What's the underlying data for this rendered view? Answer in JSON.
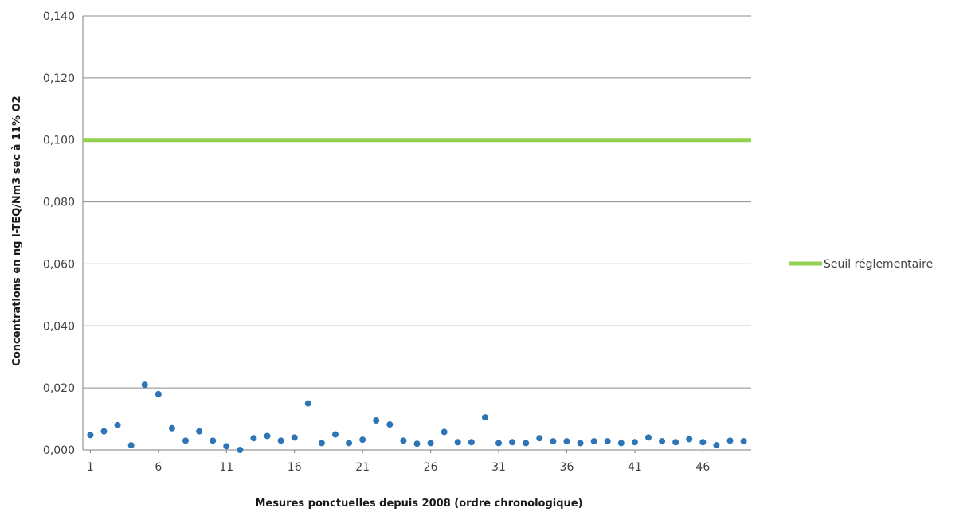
{
  "chart_data": {
    "type": "scatter",
    "title": "",
    "xlabel": "Mesures ponctuelles depuis 2008 (ordre chronologique)",
    "ylabel": "Concentrations en ng I-TEQ/Nm3 sec à 11% O2",
    "ylim": [
      0,
      0.14
    ],
    "xlim": [
      1,
      49
    ],
    "grid": true,
    "legend_position": "right",
    "y_ticks": [
      "0,000",
      "0,020",
      "0,040",
      "0,060",
      "0,080",
      "0,100",
      "0,120",
      "0,140"
    ],
    "y_tick_values": [
      0,
      0.02,
      0.04,
      0.06,
      0.08,
      0.1,
      0.12,
      0.14
    ],
    "x_ticks": [
      "1",
      "6",
      "11",
      "16",
      "21",
      "26",
      "31",
      "36",
      "41",
      "46"
    ],
    "x_tick_values": [
      1,
      6,
      11,
      16,
      21,
      26,
      31,
      36,
      41,
      46
    ],
    "series": [
      {
        "kind": "points",
        "color": "#2e75b6",
        "x": [
          1,
          2,
          3,
          4,
          5,
          6,
          7,
          8,
          9,
          10,
          11,
          12,
          13,
          14,
          15,
          16,
          17,
          18,
          19,
          20,
          21,
          22,
          23,
          24,
          25,
          26,
          27,
          28,
          29,
          30,
          31,
          32,
          33,
          34,
          35,
          36,
          37,
          38,
          39,
          40,
          41,
          42,
          43,
          44,
          45,
          46,
          47,
          48,
          49
        ],
        "y": [
          0.0048,
          0.006,
          0.008,
          0.0015,
          0.021,
          0.018,
          0.007,
          0.003,
          0.006,
          0.003,
          0.0012,
          0.0,
          0.0038,
          0.0045,
          0.003,
          0.004,
          0.015,
          0.0022,
          0.005,
          0.0022,
          0.0033,
          0.0095,
          0.0082,
          0.003,
          0.002,
          0.0022,
          0.0058,
          0.0025,
          0.0025,
          0.0105,
          0.0022,
          0.0025,
          0.0022,
          0.0038,
          0.0028,
          0.0028,
          0.0022,
          0.0028,
          0.0028,
          0.0022,
          0.0025,
          0.004,
          0.0028,
          0.0025,
          0.0035,
          0.0025,
          0.0015,
          0.003,
          0.0028
        ]
      },
      {
        "kind": "line",
        "name": "Seuil réglementaire",
        "color": "#92d050",
        "value": 0.1
      }
    ]
  }
}
